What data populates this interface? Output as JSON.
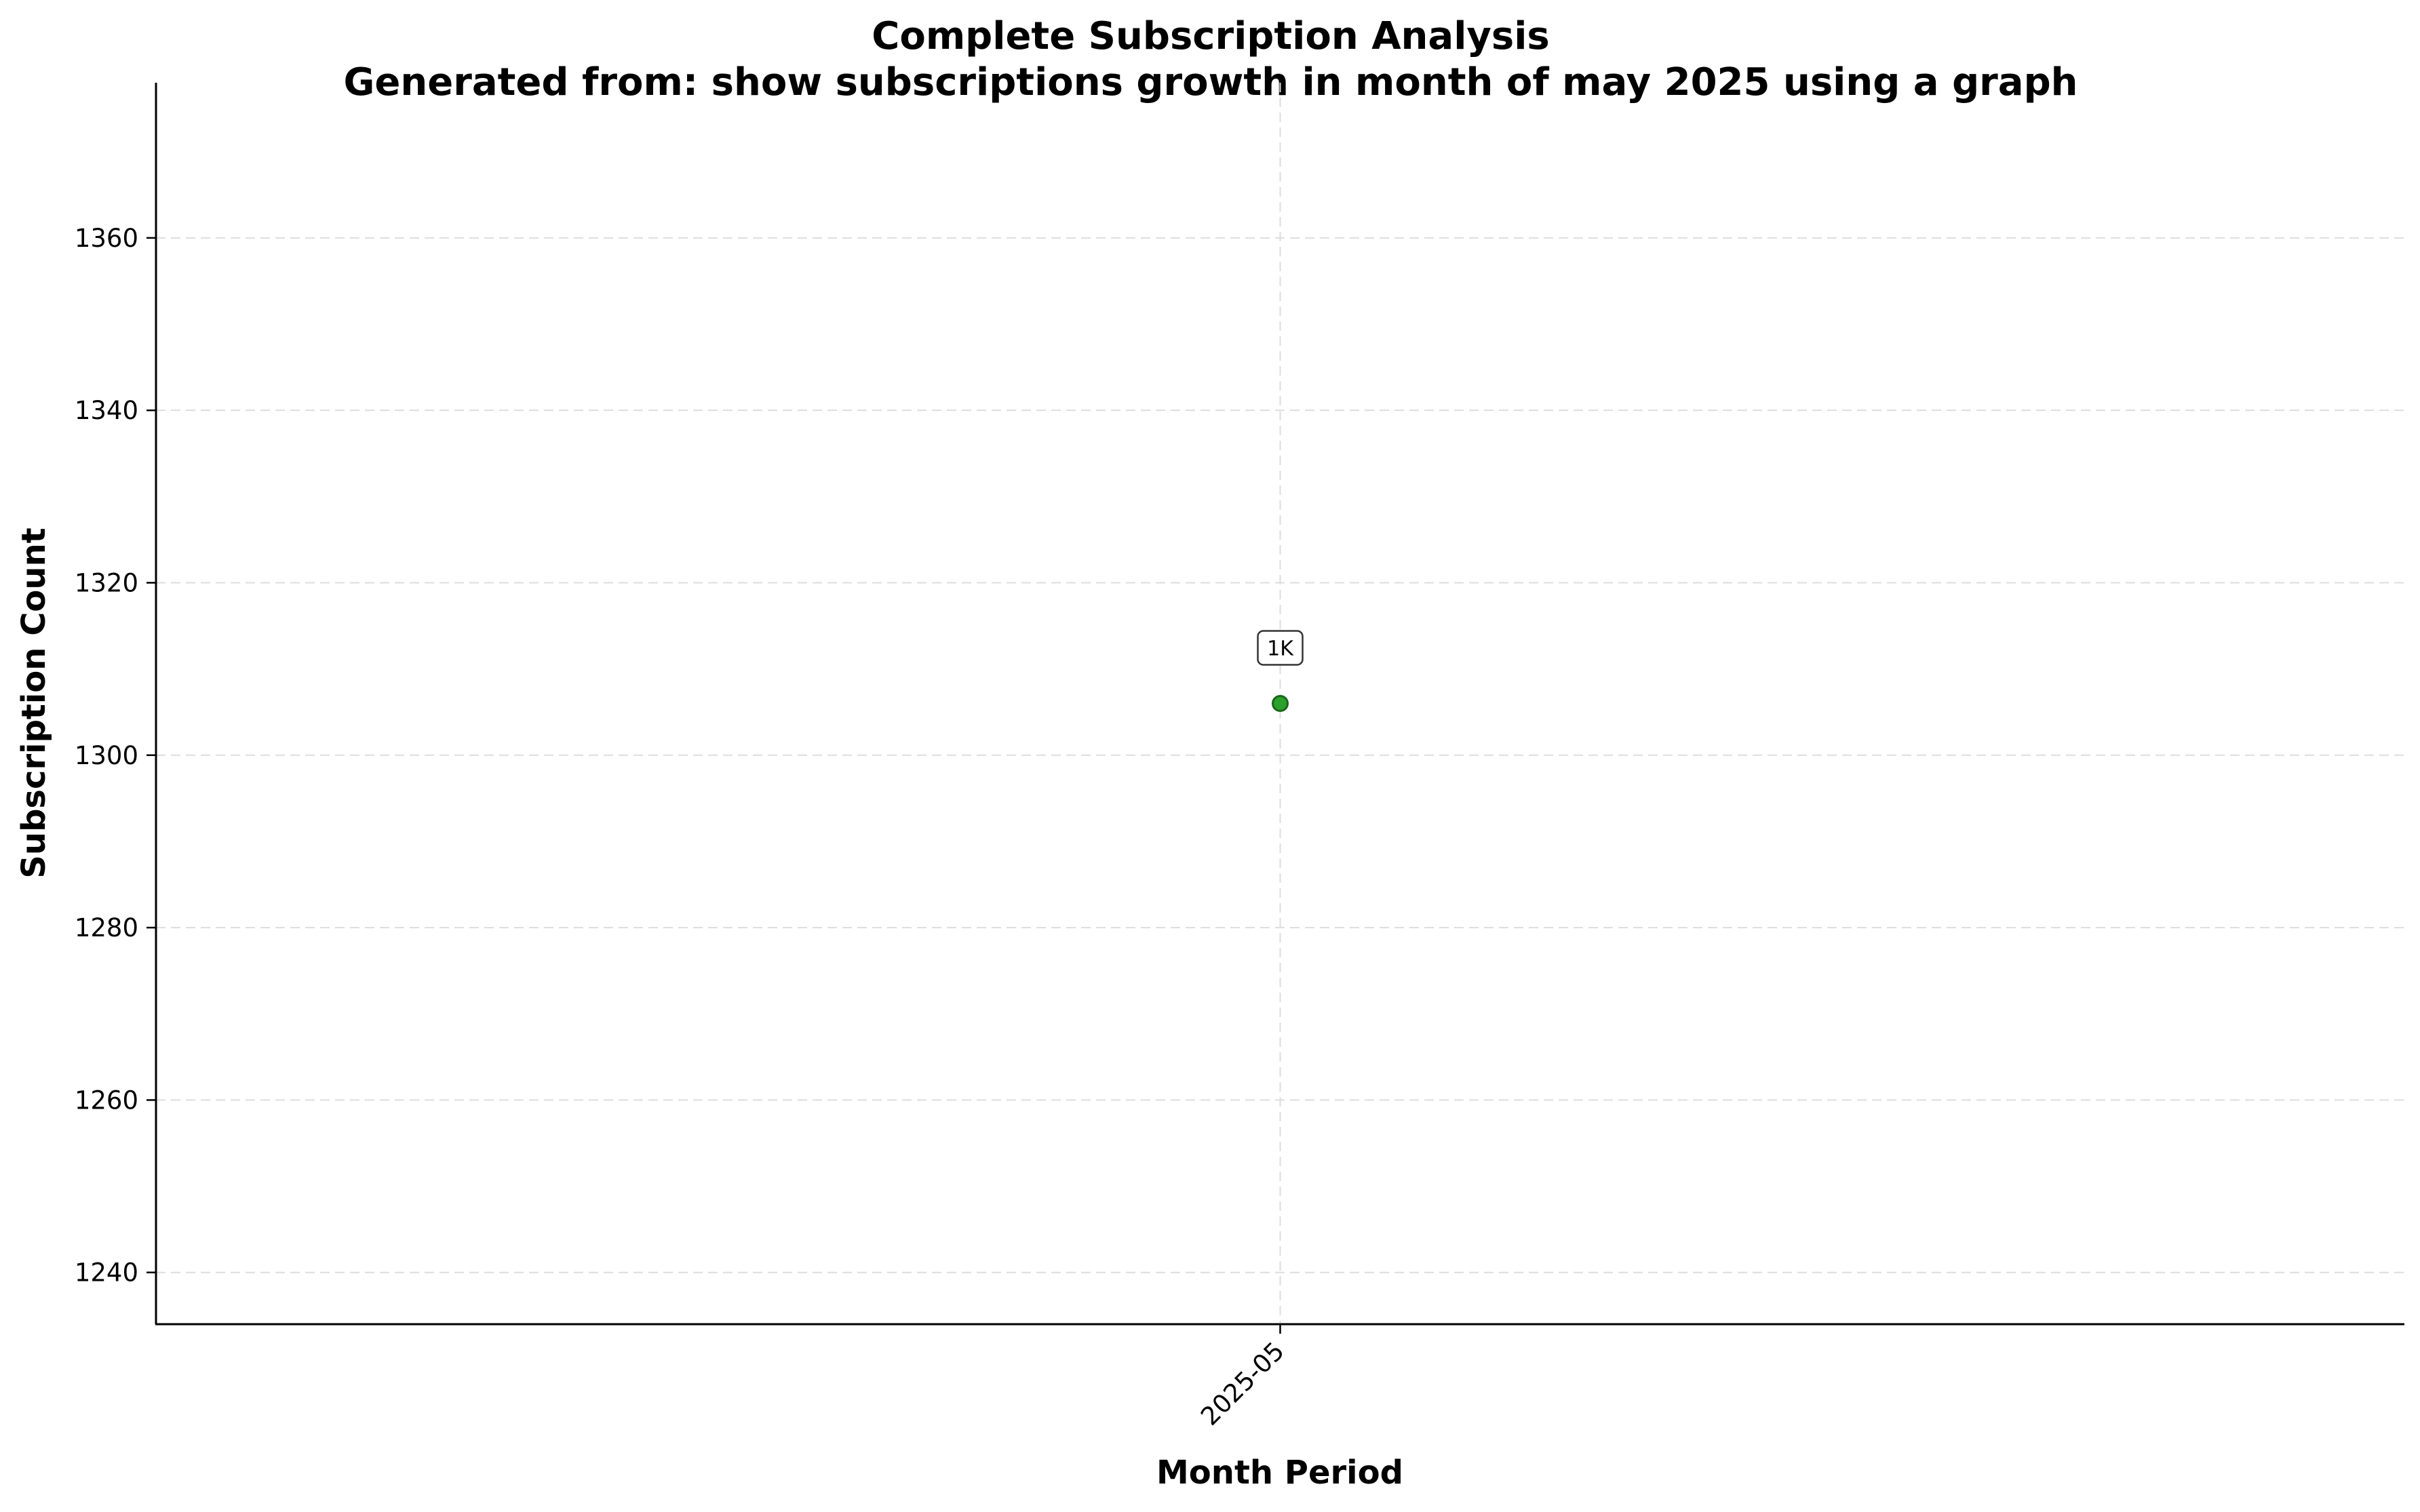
{
  "chart_data": {
    "type": "scatter",
    "title": "Complete Subscription Analysis",
    "subtitle": "Generated from: show subscriptions growth in month of may  2025 using a graph",
    "xlabel": "Month Period",
    "ylabel": "Subscription Count",
    "categories": [
      "2025-05"
    ],
    "series": [
      {
        "values": [
          1306
        ],
        "data_labels": [
          "1K"
        ],
        "color": "#2ca02c",
        "edge_color": "#1a661a"
      }
    ],
    "ylim": [
      1234,
      1378
    ],
    "yticks": [
      1240,
      1260,
      1280,
      1300,
      1320,
      1340,
      1360
    ],
    "grid": true,
    "legend": "none"
  }
}
